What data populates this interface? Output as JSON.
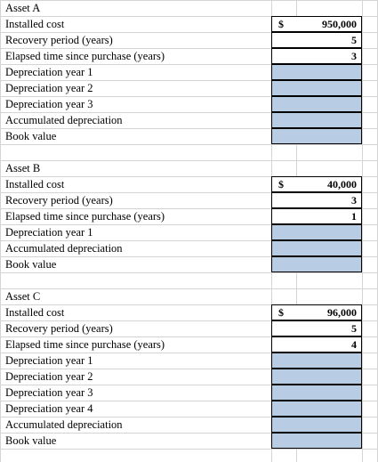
{
  "colors": {
    "input_fill": "#b8cce4",
    "grid": "#d4d4d4"
  },
  "assetA": {
    "title": "Asset A",
    "installed_label": "Installed cost",
    "recovery_label": "Recovery period (years)",
    "elapsed_label": "Elapsed time since purchase (years)",
    "dep1_label": "Depreciation year 1",
    "dep2_label": "Depreciation year 2",
    "dep3_label": "Depreciation year 3",
    "accum_label": "Accumulated depreciation",
    "book_label": "Book value",
    "currency": "$",
    "installed_cost": "950,000",
    "recovery_period": "5",
    "elapsed_time": "3"
  },
  "assetB": {
    "title": "Asset B",
    "installed_label": "Installed cost",
    "recovery_label": "Recovery period (years)",
    "elapsed_label": "Elapsed time since purchase (years)",
    "dep1_label": "Depreciation year 1",
    "accum_label": "Accumulated depreciation",
    "book_label": "Book value",
    "currency": "$",
    "installed_cost": "40,000",
    "recovery_period": "3",
    "elapsed_time": "1"
  },
  "assetC": {
    "title": "Asset C",
    "installed_label": "Installed cost",
    "recovery_label": "Recovery period (years)",
    "elapsed_label": "Elapsed time since purchase (years)",
    "dep1_label": "Depreciation year 1",
    "dep2_label": "Depreciation year 2",
    "dep3_label": "Depreciation year 3",
    "dep4_label": "Depreciation year 4",
    "accum_label": "Accumulated depreciation",
    "book_label": "Book value",
    "currency": "$",
    "installed_cost": "96,000",
    "recovery_period": "5",
    "elapsed_time": "4"
  }
}
